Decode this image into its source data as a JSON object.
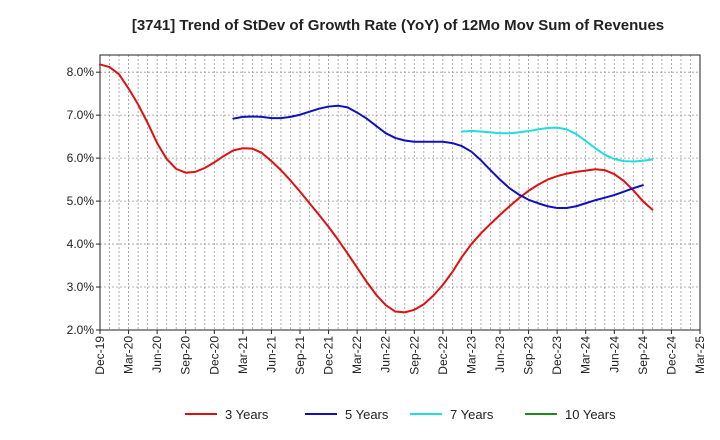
{
  "chart_data": {
    "type": "line",
    "title": "[3741]  Trend of StDev of Growth Rate (YoY) of 12Mo Mov Sum of Revenues",
    "xlabel": "",
    "ylabel": "",
    "ylim": [
      2.0,
      8.4
    ],
    "y_ticks": [
      2.0,
      3.0,
      4.0,
      5.0,
      6.0,
      7.0,
      8.0
    ],
    "y_tick_labels": [
      "2.0%",
      "3.0%",
      "4.0%",
      "5.0%",
      "6.0%",
      "7.0%",
      "8.0%"
    ],
    "x_ticks": [
      "Dec-19",
      "Mar-20",
      "Jun-20",
      "Sep-20",
      "Dec-20",
      "Mar-21",
      "Jun-21",
      "Sep-21",
      "Dec-21",
      "Mar-22",
      "Jun-22",
      "Sep-22",
      "Dec-22",
      "Mar-23",
      "Jun-23",
      "Sep-23",
      "Dec-23",
      "Mar-24",
      "Jun-24",
      "Sep-24",
      "Dec-24",
      "Mar-25"
    ],
    "grid": true,
    "legend_position": "bottom",
    "series": [
      {
        "name": "3 Years",
        "color": "#dd1111",
        "start_index": 0,
        "values": [
          8.18,
          8.12,
          7.95,
          7.62,
          7.25,
          6.82,
          6.35,
          5.98,
          5.75,
          5.66,
          5.68,
          5.77,
          5.9,
          6.05,
          6.18,
          6.23,
          6.22,
          6.12,
          5.93,
          5.72,
          5.48,
          5.22,
          4.95,
          4.68,
          4.4,
          4.1,
          3.78,
          3.45,
          3.12,
          2.82,
          2.58,
          2.43,
          2.41,
          2.47,
          2.6,
          2.8,
          3.05,
          3.35,
          3.7,
          4.0,
          4.25,
          4.47,
          4.68,
          4.88,
          5.07,
          5.24,
          5.38,
          5.5,
          5.58,
          5.64,
          5.68,
          5.71,
          5.74,
          5.72,
          5.63,
          5.47,
          5.25,
          5.0,
          4.8
        ]
      },
      {
        "name": "5 Years",
        "color": "#1111bb",
        "start_index": 14,
        "values": [
          6.92,
          6.96,
          6.97,
          6.96,
          6.93,
          6.93,
          6.96,
          7.01,
          7.08,
          7.15,
          7.2,
          7.22,
          7.18,
          7.06,
          6.92,
          6.75,
          6.58,
          6.47,
          6.41,
          6.38,
          6.38,
          6.38,
          6.38,
          6.35,
          6.28,
          6.15,
          5.95,
          5.72,
          5.5,
          5.3,
          5.15,
          5.03,
          4.95,
          4.88,
          4.84,
          4.84,
          4.88,
          4.95,
          5.02,
          5.08,
          5.14,
          5.22,
          5.3,
          5.37
        ]
      },
      {
        "name": "7 Years",
        "color": "#22dddd",
        "start_index": 38,
        "values": [
          6.62,
          6.63,
          6.62,
          6.6,
          6.58,
          6.58,
          6.6,
          6.63,
          6.67,
          6.7,
          6.71,
          6.67,
          6.56,
          6.4,
          6.23,
          6.08,
          5.98,
          5.93,
          5.92,
          5.94,
          5.97
        ]
      },
      {
        "name": "10 Years",
        "color": "#228822",
        "start_index": 0,
        "values": []
      }
    ]
  }
}
